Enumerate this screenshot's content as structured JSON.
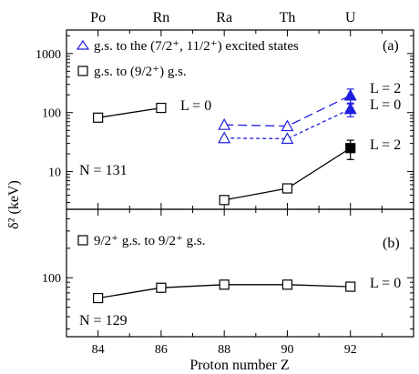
{
  "chart_data": [
    {
      "panel": "(a)",
      "type": "line",
      "yscale": "log",
      "ylim": [
        2.3,
        2500
      ],
      "xlim": [
        83,
        94
      ],
      "yticks": [
        10,
        100,
        1000
      ],
      "ytick_labels": [
        "10",
        "100",
        "1000"
      ],
      "ylabel": "δ² (keV)",
      "legend": [
        {
          "symbol": "open-triangle",
          "color": "#1f1fe0",
          "label": "g.s. to the (7/2⁺, 11/2⁺) excited states"
        },
        {
          "symbol": "open-square",
          "color": "#000000",
          "label": "g.s. to (9/2⁺) g.s."
        }
      ],
      "series": [
        {
          "name": "g.s. to (9/2⁺) g.s.",
          "color": "#000000",
          "marker": "open-square",
          "line": "solid",
          "x": [
            84,
            86
          ],
          "y": [
            82,
            120
          ]
        },
        {
          "name": "g.s. to (9/2⁺) g.s.",
          "color": "#000000",
          "marker": "open-square",
          "line": "solid",
          "x": [
            88,
            90,
            92
          ],
          "y": [
            3.3,
            5.2,
            25
          ],
          "err": [
            0,
            0,
            9
          ],
          "filled_last": true
        },
        {
          "name": "g.s. to the (7/2⁺, 11/2⁺) excited states",
          "color": "#1f1fe0",
          "marker": "open-triangle",
          "line": "long-dash",
          "x": [
            88,
            90,
            92
          ],
          "y": [
            62,
            59,
            195
          ],
          "err": [
            0,
            0,
            55
          ],
          "filled_last": true
        },
        {
          "name": "g.s. to the (7/2⁺, 11/2⁺) excited states",
          "color": "#1f1fe0",
          "marker": "open-triangle",
          "line": "short-dash",
          "x": [
            88,
            90,
            92
          ],
          "y": [
            37,
            36,
            115
          ],
          "err": [
            0,
            0,
            30
          ],
          "filled_last": true
        }
      ],
      "annotations": {
        "panel_label": "(a)",
        "n_label": "N = 131",
        "l_po_rn": "L = 0",
        "l_u_top": "L = 2",
        "l_u_mid": "L = 0",
        "l_u_low": "L = 2"
      }
    },
    {
      "panel": "(b)",
      "type": "line",
      "yscale": "log",
      "ylim": [
        25,
        500
      ],
      "xlim": [
        83,
        94
      ],
      "yticks": [
        100
      ],
      "ytick_labels": [
        "100"
      ],
      "legend": [
        {
          "symbol": "open-square",
          "color": "#000000",
          "label": "9/2⁺ g.s. to 9/2⁺ g.s."
        }
      ],
      "series": [
        {
          "name": "9/2⁺ g.s. to 9/2⁺ g.s.",
          "color": "#000000",
          "marker": "open-square",
          "line": "solid",
          "x": [
            84,
            86,
            88,
            90,
            92
          ],
          "y": [
            62,
            79,
            85,
            85,
            81
          ],
          "err": [
            0,
            0,
            0,
            0,
            8
          ]
        }
      ],
      "annotations": {
        "panel_label": "(b)",
        "n_label": "N = 129",
        "l_u": "L = 0"
      }
    }
  ],
  "x_axis": {
    "title": "Proton number Z",
    "ticks": [
      84,
      86,
      88,
      90,
      92
    ],
    "tick_labels": [
      "84",
      "86",
      "88",
      "90",
      "92"
    ],
    "top_ticks": [
      84,
      86,
      88,
      90,
      92
    ],
    "top_labels": [
      "Po",
      "Rn",
      "Ra",
      "Th",
      "U"
    ]
  },
  "ylabel": "δ² (keV)"
}
